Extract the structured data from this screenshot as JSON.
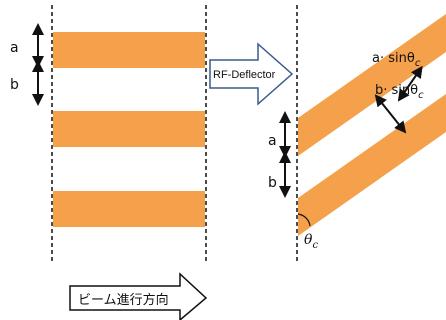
{
  "colors": {
    "stripe": "#F5A04A",
    "outline": "#1a1a1a",
    "arrow_border": "#3b5a8c"
  },
  "left_panel": {
    "label_a": "a",
    "label_b": "b"
  },
  "deflector": {
    "label": "RF-Deflector"
  },
  "right_panel": {
    "label_a": "a",
    "label_b": "b",
    "label_a_sin": "a· sinθ",
    "label_a_sin_sub": "c",
    "label_b_sin": "b· sinθ",
    "label_b_sin_sub": "c",
    "angle_label": "θ",
    "angle_sub": "c"
  },
  "beam_direction": {
    "label": "ビーム進行方向"
  }
}
